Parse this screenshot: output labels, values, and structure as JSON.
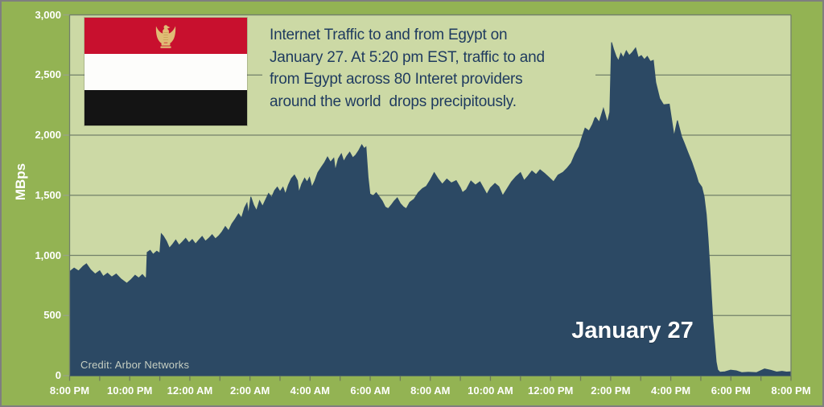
{
  "colors": {
    "background": "#93b353",
    "plot_background": "#ccd9a5",
    "area_fill": "#2c4964",
    "gridline": "#72806a",
    "axis_border": "#72806a",
    "x_tick": "#6e7a5c",
    "y_tick": "#9aa488",
    "annotation_text": "#1e3a5f",
    "axis_text": "#ffffff",
    "credit_text": "#c6cfc2",
    "flag_red": "#c8102e",
    "flag_white": "#fdfdfb",
    "flag_black": "#141414",
    "eagle_gold": "#e0bc75",
    "eagle_gold_dark": "#c09a4e"
  },
  "annotation": {
    "lines": [
      "Internet Traffic to and from Egypt on",
      "January 27. At 5:20 pm EST, traffic to and",
      "from Egypt across 80 Interet providers",
      "around the world  drops precipitously."
    ]
  },
  "labels": {
    "date_label": "January 27",
    "credit": "Credit: Arbor Networks",
    "flag_icon": "egypt-flag"
  },
  "chart_data": {
    "type": "area",
    "title": "Internet Traffic to and from Egypt on January 27",
    "xlabel": "",
    "ylabel": "MBps",
    "x_unit": "hours since 8:00 PM",
    "xlim": [
      0,
      24
    ],
    "ylim": [
      0,
      3000
    ],
    "grid": true,
    "y_ticks": [
      0,
      500,
      1000,
      1500,
      2000,
      2500,
      3000
    ],
    "y_tick_labels": [
      "0",
      "500",
      "1,000",
      "1,500",
      "2,000",
      "2,500",
      "3,000"
    ],
    "x_ticks_hours": [
      0,
      1,
      2,
      3,
      4,
      5,
      6,
      7,
      8,
      9,
      10,
      11,
      12,
      13,
      14,
      15,
      16,
      17,
      18,
      19,
      20,
      21,
      22,
      23,
      24
    ],
    "x_label_hours": [
      0,
      2,
      4,
      6,
      8,
      10,
      12,
      14,
      16,
      18,
      20,
      22,
      24
    ],
    "x_tick_labels": [
      "8:00 PM",
      "10:00 PM",
      "12:00 AM",
      "2:00 AM",
      "4:00 AM",
      "6:00 AM",
      "8:00 AM",
      "10:00 AM",
      "12:00 PM",
      "2:00 PM",
      "4:00 PM",
      "6:00 PM",
      "8:00 PM"
    ],
    "series": [
      {
        "name": "Traffic (MBps)",
        "points": [
          [
            0,
            865
          ],
          [
            0.15,
            895
          ],
          [
            0.3,
            870
          ],
          [
            0.45,
            910
          ],
          [
            0.56,
            930
          ],
          [
            0.7,
            880
          ],
          [
            0.85,
            845
          ],
          [
            1,
            872
          ],
          [
            1.12,
            825
          ],
          [
            1.26,
            852
          ],
          [
            1.4,
            820
          ],
          [
            1.55,
            845
          ],
          [
            1.7,
            806
          ],
          [
            1.9,
            768
          ],
          [
            2.05,
            800
          ],
          [
            2.18,
            835
          ],
          [
            2.3,
            812
          ],
          [
            2.42,
            840
          ],
          [
            2.52,
            812
          ],
          [
            2.55,
            818
          ],
          [
            2.58,
            1025
          ],
          [
            2.68,
            1042
          ],
          [
            2.78,
            1008
          ],
          [
            2.9,
            1035
          ],
          [
            3,
            1018
          ],
          [
            3.05,
            1180
          ],
          [
            3.12,
            1160
          ],
          [
            3.22,
            1118
          ],
          [
            3.32,
            1060
          ],
          [
            3.43,
            1092
          ],
          [
            3.53,
            1128
          ],
          [
            3.64,
            1085
          ],
          [
            3.75,
            1112
          ],
          [
            3.86,
            1142
          ],
          [
            3.97,
            1105
          ],
          [
            4.08,
            1132
          ],
          [
            4.19,
            1095
          ],
          [
            4.3,
            1128
          ],
          [
            4.41,
            1158
          ],
          [
            4.52,
            1118
          ],
          [
            4.63,
            1142
          ],
          [
            4.74,
            1172
          ],
          [
            4.85,
            1138
          ],
          [
            4.96,
            1162
          ],
          [
            5.07,
            1195
          ],
          [
            5.18,
            1240
          ],
          [
            5.29,
            1205
          ],
          [
            5.4,
            1262
          ],
          [
            5.51,
            1302
          ],
          [
            5.62,
            1345
          ],
          [
            5.72,
            1312
          ],
          [
            5.82,
            1395
          ],
          [
            5.9,
            1435
          ],
          [
            5.95,
            1340
          ],
          [
            6.03,
            1487
          ],
          [
            6.12,
            1420
          ],
          [
            6.22,
            1372
          ],
          [
            6.32,
            1455
          ],
          [
            6.42,
            1408
          ],
          [
            6.52,
            1462
          ],
          [
            6.62,
            1515
          ],
          [
            6.72,
            1482
          ],
          [
            6.82,
            1540
          ],
          [
            6.91,
            1568
          ],
          [
            7,
            1530
          ],
          [
            7.1,
            1567
          ],
          [
            7.18,
            1510
          ],
          [
            7.28,
            1585
          ],
          [
            7.38,
            1640
          ],
          [
            7.48,
            1668
          ],
          [
            7.58,
            1622
          ],
          [
            7.63,
            1523
          ],
          [
            7.72,
            1592
          ],
          [
            7.82,
            1642
          ],
          [
            7.9,
            1610
          ],
          [
            7.98,
            1648
          ],
          [
            8.06,
            1567
          ],
          [
            8.16,
            1620
          ],
          [
            8.26,
            1688
          ],
          [
            8.38,
            1735
          ],
          [
            8.48,
            1772
          ],
          [
            8.58,
            1818
          ],
          [
            8.68,
            1775
          ],
          [
            8.79,
            1808
          ],
          [
            8.84,
            1708
          ],
          [
            8.94,
            1802
          ],
          [
            9.04,
            1845
          ],
          [
            9.12,
            1782
          ],
          [
            9.22,
            1825
          ],
          [
            9.32,
            1858
          ],
          [
            9.42,
            1812
          ],
          [
            9.52,
            1835
          ],
          [
            9.62,
            1872
          ],
          [
            9.72,
            1920
          ],
          [
            9.8,
            1888
          ],
          [
            9.86,
            1902
          ],
          [
            9.93,
            1650
          ],
          [
            9.99,
            1512
          ],
          [
            10.1,
            1495
          ],
          [
            10.2,
            1522
          ],
          [
            10.3,
            1488
          ],
          [
            10.4,
            1452
          ],
          [
            10.5,
            1402
          ],
          [
            10.6,
            1388
          ],
          [
            10.7,
            1418
          ],
          [
            10.8,
            1452
          ],
          [
            10.9,
            1478
          ],
          [
            11,
            1432
          ],
          [
            11.1,
            1405
          ],
          [
            11.2,
            1388
          ],
          [
            11.32,
            1442
          ],
          [
            11.46,
            1468
          ],
          [
            11.6,
            1522
          ],
          [
            11.74,
            1556
          ],
          [
            11.87,
            1575
          ],
          [
            12,
            1628
          ],
          [
            12.13,
            1688
          ],
          [
            12.25,
            1640
          ],
          [
            12.4,
            1592
          ],
          [
            12.55,
            1635
          ],
          [
            12.7,
            1602
          ],
          [
            12.86,
            1622
          ],
          [
            13,
            1562
          ],
          [
            13.07,
            1522
          ],
          [
            13.2,
            1548
          ],
          [
            13.35,
            1618
          ],
          [
            13.5,
            1585
          ],
          [
            13.65,
            1612
          ],
          [
            13.8,
            1545
          ],
          [
            13.88,
            1508
          ],
          [
            14,
            1562
          ],
          [
            14.15,
            1598
          ],
          [
            14.28,
            1572
          ],
          [
            14.41,
            1496
          ],
          [
            14.55,
            1552
          ],
          [
            14.7,
            1612
          ],
          [
            14.85,
            1655
          ],
          [
            15,
            1688
          ],
          [
            15.12,
            1622
          ],
          [
            15.25,
            1660
          ],
          [
            15.38,
            1702
          ],
          [
            15.52,
            1672
          ],
          [
            15.65,
            1712
          ],
          [
            15.8,
            1682
          ],
          [
            15.95,
            1648
          ],
          [
            16.1,
            1612
          ],
          [
            16.25,
            1668
          ],
          [
            16.42,
            1692
          ],
          [
            16.56,
            1728
          ],
          [
            16.69,
            1768
          ],
          [
            16.82,
            1845
          ],
          [
            16.95,
            1905
          ],
          [
            17.05,
            1985
          ],
          [
            17.15,
            2058
          ],
          [
            17.28,
            2035
          ],
          [
            17.4,
            2092
          ],
          [
            17.49,
            2152
          ],
          [
            17.62,
            2108
          ],
          [
            17.76,
            2222
          ],
          [
            17.89,
            2105
          ],
          [
            17.97,
            2190
          ],
          [
            18.03,
            2772
          ],
          [
            18.1,
            2712
          ],
          [
            18.18,
            2655
          ],
          [
            18.26,
            2618
          ],
          [
            18.34,
            2680
          ],
          [
            18.42,
            2645
          ],
          [
            18.52,
            2702
          ],
          [
            18.62,
            2662
          ],
          [
            18.72,
            2688
          ],
          [
            18.83,
            2725
          ],
          [
            18.92,
            2645
          ],
          [
            19.02,
            2662
          ],
          [
            19.12,
            2628
          ],
          [
            19.22,
            2655
          ],
          [
            19.32,
            2612
          ],
          [
            19.42,
            2622
          ],
          [
            19.5,
            2438
          ],
          [
            19.63,
            2305
          ],
          [
            19.76,
            2252
          ],
          [
            19.95,
            2258
          ],
          [
            20.11,
            1992
          ],
          [
            20.22,
            2122
          ],
          [
            20.36,
            1988
          ],
          [
            20.44,
            1940
          ],
          [
            20.57,
            1855
          ],
          [
            20.7,
            1775
          ],
          [
            20.84,
            1672
          ],
          [
            20.92,
            1608
          ],
          [
            21.03,
            1568
          ],
          [
            21.11,
            1488
          ],
          [
            21.18,
            1340
          ],
          [
            21.24,
            1140
          ],
          [
            21.3,
            898
          ],
          [
            21.35,
            670
          ],
          [
            21.4,
            450
          ],
          [
            21.46,
            268
          ],
          [
            21.51,
            115
          ],
          [
            21.56,
            48
          ],
          [
            21.64,
            28
          ],
          [
            21.8,
            32
          ],
          [
            21.99,
            46
          ],
          [
            22.18,
            40
          ],
          [
            22.37,
            25
          ],
          [
            22.58,
            28
          ],
          [
            22.85,
            25
          ],
          [
            23.12,
            56
          ],
          [
            23.33,
            45
          ],
          [
            23.52,
            30
          ],
          [
            23.7,
            36
          ],
          [
            23.85,
            30
          ],
          [
            24,
            33
          ]
        ]
      }
    ],
    "annotations": [
      "January 27",
      "Credit: Arbor Networks"
    ]
  }
}
